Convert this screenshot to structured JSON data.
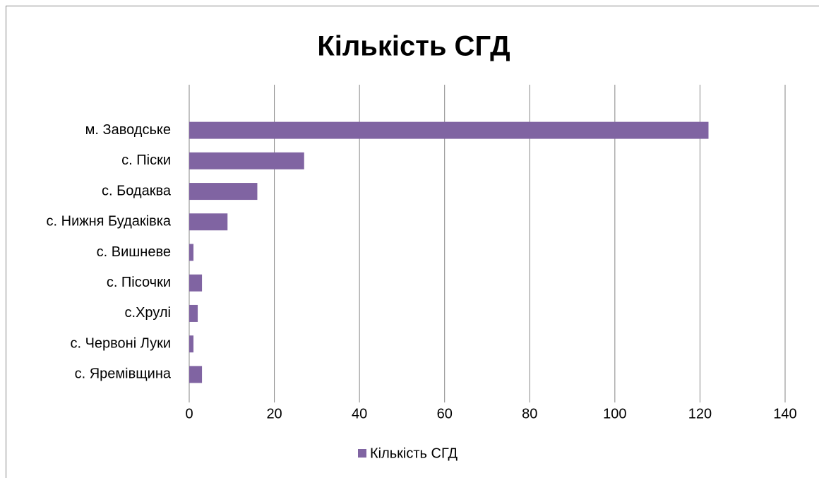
{
  "chart_data": {
    "type": "bar",
    "orientation": "horizontal",
    "title": "Кількість СГД",
    "categories": [
      "м. Заводське",
      "с. Піски",
      "с. Бодаква",
      "с. Нижня Будаківка",
      "с. Вишневе",
      "с. Пісочки",
      "с.Хрулі",
      "с. Червоні Луки",
      "с. Яремівщина"
    ],
    "series": [
      {
        "name": "Кількість СГД",
        "color": "#8064a2",
        "values": [
          122,
          27,
          16,
          9,
          1,
          3,
          2,
          1,
          3
        ]
      }
    ],
    "xlim": [
      0,
      140
    ],
    "xticks": [
      0,
      20,
      40,
      60,
      80,
      100,
      120,
      140
    ],
    "grid": true,
    "legend": "bottom"
  }
}
